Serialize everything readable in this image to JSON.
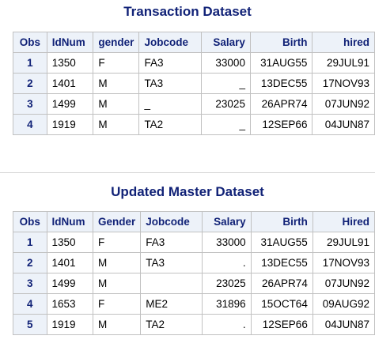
{
  "transaction": {
    "title": "Transaction Dataset",
    "headers": [
      "Obs",
      "IdNum",
      "gender",
      "Jobcode",
      "Salary",
      "Birth",
      "hired"
    ],
    "rows": [
      {
        "obs": "1",
        "idnum": "1350",
        "gender": "F",
        "jobcode": "FA3",
        "salary": "33000",
        "birth": "31AUG55",
        "hired": "29JUL91"
      },
      {
        "obs": "2",
        "idnum": "1401",
        "gender": "M",
        "jobcode": "TA3",
        "salary": "_",
        "birth": "13DEC55",
        "hired": "17NOV93"
      },
      {
        "obs": "3",
        "idnum": "1499",
        "gender": "M",
        "jobcode": "_",
        "salary": "23025",
        "birth": "26APR74",
        "hired": "07JUN92"
      },
      {
        "obs": "4",
        "idnum": "1919",
        "gender": "M",
        "jobcode": "TA2",
        "salary": "_",
        "birth": "12SEP66",
        "hired": "04JUN87"
      }
    ]
  },
  "master": {
    "title": "Updated Master Dataset",
    "headers": [
      "Obs",
      "IdNum",
      "Gender",
      "Jobcode",
      "Salary",
      "Birth",
      "Hired"
    ],
    "rows": [
      {
        "obs": "1",
        "idnum": "1350",
        "gender": "F",
        "jobcode": "FA3",
        "salary": "33000",
        "birth": "31AUG55",
        "hired": "29JUL91"
      },
      {
        "obs": "2",
        "idnum": "1401",
        "gender": "M",
        "jobcode": "TA3",
        "salary": ".",
        "birth": "13DEC55",
        "hired": "17NOV93"
      },
      {
        "obs": "3",
        "idnum": "1499",
        "gender": "M",
        "jobcode": "",
        "salary": "23025",
        "birth": "26APR74",
        "hired": "07JUN92"
      },
      {
        "obs": "4",
        "idnum": "1653",
        "gender": "F",
        "jobcode": "ME2",
        "salary": "31896",
        "birth": "15OCT64",
        "hired": "09AUG92"
      },
      {
        "obs": "5",
        "idnum": "1919",
        "gender": "M",
        "jobcode": "TA2",
        "salary": ".",
        "birth": "12SEP66",
        "hired": "04JUN87"
      }
    ]
  },
  "colors": {
    "title": "#112277",
    "header_bg": "#edf2f9",
    "border": "#c1c1c1"
  }
}
